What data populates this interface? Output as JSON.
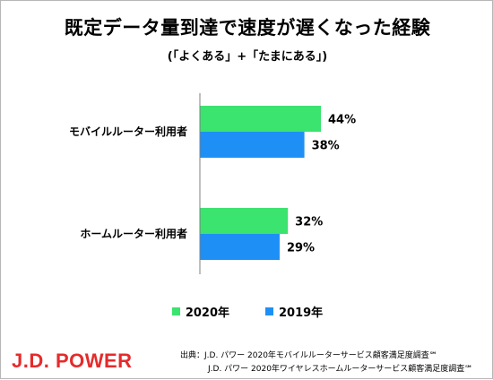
{
  "title": "既定データ量到達で速度が遅くなった経験",
  "subtitle": "(「よくある」+「たまにある」)",
  "brand": "J.D. POWER",
  "source": {
    "line1": "出典：J.D. パワー 2020年モバイルルーターサービス顧客満足度調査℠",
    "line2": "J.D. パワー 2020年ワイヤレスホームルーターサービス顧客満足度調査℠"
  },
  "colors": {
    "2020": "#3be36f",
    "2019": "#1e90f5"
  },
  "legend": [
    {
      "label": "2020年",
      "color": "#3be36f"
    },
    {
      "label": "2019年",
      "color": "#1e90f5"
    }
  ],
  "chart_data": {
    "type": "bar",
    "orientation": "horizontal",
    "categories": [
      "モバイルルーター利用者",
      "ホームルーター利用者"
    ],
    "series": [
      {
        "name": "2020年",
        "values": [
          44,
          32
        ],
        "labels": [
          "44%",
          "32%"
        ]
      },
      {
        "name": "2019年",
        "values": [
          38,
          29
        ],
        "labels": [
          "38%",
          "29%"
        ]
      }
    ],
    "xlim": [
      0,
      100
    ],
    "grid": false,
    "legend_position": "bottom"
  }
}
